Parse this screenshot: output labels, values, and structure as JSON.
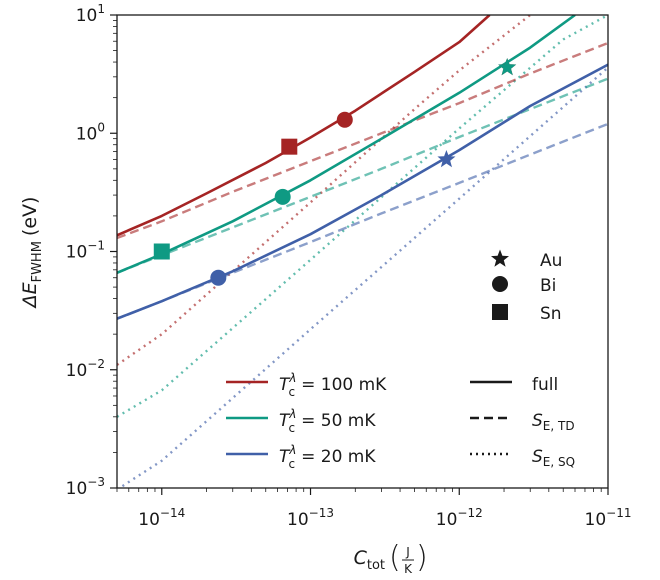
{
  "chart_data": {
    "type": "line",
    "title": "",
    "x_scale": "log",
    "y_scale": "log",
    "xlim": [
      5e-15,
      1e-11
    ],
    "ylim": [
      0.001,
      10
    ],
    "x_ticks": [
      {
        "value": 1e-14,
        "mantissa": "10",
        "exponent": "−14"
      },
      {
        "value": 1e-13,
        "mantissa": "10",
        "exponent": "−13"
      },
      {
        "value": 1e-12,
        "mantissa": "10",
        "exponent": "−12"
      },
      {
        "value": 1e-11,
        "mantissa": "10",
        "exponent": "−11"
      }
    ],
    "y_ticks": [
      {
        "value": 0.001,
        "mantissa": "10",
        "exponent": "−3"
      },
      {
        "value": 0.01,
        "mantissa": "10",
        "exponent": "−2"
      },
      {
        "value": 0.1,
        "mantissa": "10",
        "exponent": "−1"
      },
      {
        "value": 1,
        "mantissa": "10",
        "exponent": "0"
      },
      {
        "value": 10,
        "mantissa": "10",
        "exponent": "1"
      }
    ],
    "xlabel": {
      "main": "C",
      "sub": "tot",
      "unit_num": "J",
      "unit_den": "K"
    },
    "ylabel": {
      "main": "ΔE",
      "sub": "FWHM",
      "unit": "(eV)"
    },
    "grid": false,
    "series": [
      {
        "color": "#a52424",
        "legend": {
          "prefix": "T",
          "sup": "λ",
          "sub": "c",
          "value": "= 100 mK"
        },
        "full": [
          [
            5e-15,
            0.137
          ],
          [
            1e-14,
            0.2
          ],
          [
            2e-14,
            0.31
          ],
          [
            5e-14,
            0.56
          ],
          [
            1e-13,
            0.92
          ],
          [
            2e-13,
            1.55
          ],
          [
            5e-13,
            3.3
          ],
          [
            1e-12,
            5.9
          ],
          [
            1.6e-12,
            10
          ]
        ],
        "td": [
          [
            5e-15,
            0.13
          ],
          [
            1e-14,
            0.18
          ],
          [
            3e-14,
            0.32
          ],
          [
            1e-13,
            0.58
          ],
          [
            3e-13,
            1.0
          ],
          [
            1e-12,
            1.8
          ],
          [
            3e-12,
            3.2
          ],
          [
            1e-11,
            5.8
          ]
        ],
        "sq": [
          [
            5e-15,
            0.011
          ],
          [
            1e-14,
            0.02
          ],
          [
            1e-13,
            0.26
          ],
          [
            5e-13,
            1.6
          ],
          [
            1e-12,
            3.4
          ],
          [
            3e-12,
            10
          ]
        ]
      },
      {
        "color": "#0f9a83",
        "legend": {
          "prefix": "T",
          "sup": "λ",
          "sub": "c",
          "value": "= 50 mK"
        },
        "full": [
          [
            5e-15,
            0.066
          ],
          [
            1e-14,
            0.095
          ],
          [
            3e-14,
            0.18
          ],
          [
            1e-13,
            0.4
          ],
          [
            3e-13,
            0.9
          ],
          [
            1e-12,
            2.2
          ],
          [
            3e-12,
            5.3
          ],
          [
            6e-12,
            10
          ]
        ],
        "td": [
          [
            5e-15,
            0.066
          ],
          [
            1e-14,
            0.093
          ],
          [
            3e-14,
            0.16
          ],
          [
            1e-13,
            0.29
          ],
          [
            3e-13,
            0.5
          ],
          [
            1e-12,
            0.93
          ],
          [
            3e-12,
            1.6
          ],
          [
            1e-11,
            2.9
          ]
        ],
        "sq": [
          [
            5e-15,
            0.004
          ],
          [
            1e-14,
            0.0067
          ],
          [
            1e-13,
            0.085
          ],
          [
            1e-12,
            1.1
          ],
          [
            5e-12,
            6.2
          ],
          [
            1e-11,
            10
          ]
        ]
      },
      {
        "color": "#4060a8",
        "legend": {
          "prefix": "T",
          "sup": "λ",
          "sub": "c",
          "value": "= 20 mK"
        },
        "full": [
          [
            5e-15,
            0.027
          ],
          [
            1e-14,
            0.038
          ],
          [
            3e-14,
            0.068
          ],
          [
            1e-13,
            0.14
          ],
          [
            3e-13,
            0.3
          ],
          [
            1e-12,
            0.72
          ],
          [
            3e-12,
            1.7
          ],
          [
            1e-11,
            3.8
          ]
        ],
        "td": [
          [
            5e-15,
            0.027
          ],
          [
            1e-14,
            0.038
          ],
          [
            3e-14,
            0.066
          ],
          [
            1e-13,
            0.12
          ],
          [
            3e-13,
            0.21
          ],
          [
            1e-12,
            0.38
          ],
          [
            3e-12,
            0.66
          ],
          [
            1e-11,
            1.2
          ]
        ],
        "sq": [
          [
            5e-15,
            0.00097
          ],
          [
            1e-14,
            0.0017
          ],
          [
            1e-13,
            0.022
          ],
          [
            1e-12,
            0.28
          ],
          [
            1e-11,
            3.6
          ]
        ]
      }
    ],
    "markers": [
      {
        "material": "Au",
        "shape": "star",
        "series": 0,
        "x": 2.1e-12,
        "y": 3.6
      },
      {
        "material": "Bi",
        "shape": "circle",
        "series": 0,
        "x": 1.7e-13,
        "y": 1.3
      },
      {
        "material": "Sn",
        "shape": "square",
        "series": 0,
        "x": 7.2e-14,
        "y": 0.77
      },
      {
        "material": "Au",
        "shape": "star",
        "series": 1,
        "x": 2.1e-12,
        "y": 3.6
      },
      {
        "material": "Bi",
        "shape": "circle",
        "series": 1,
        "x": 6.5e-14,
        "y": 0.29
      },
      {
        "material": "Sn",
        "shape": "square",
        "series": 1,
        "x": 1e-14,
        "y": 0.1
      },
      {
        "material": "Au",
        "shape": "star",
        "series": 2,
        "x": 8.2e-13,
        "y": 0.6
      },
      {
        "material": "Bi",
        "shape": "circle",
        "series": 2,
        "x": 2.4e-14,
        "y": 0.06
      }
    ],
    "marker_legend": [
      {
        "shape": "star",
        "label": "Au"
      },
      {
        "shape": "circle",
        "label": "Bi"
      },
      {
        "shape": "square",
        "label": "Sn"
      }
    ],
    "style_legend": [
      {
        "style": "full",
        "label": "full"
      },
      {
        "style": "dashed",
        "main": "S",
        "sub": "E, TD"
      },
      {
        "style": "dotted",
        "main": "S",
        "sub": "E, SQ"
      }
    ]
  }
}
